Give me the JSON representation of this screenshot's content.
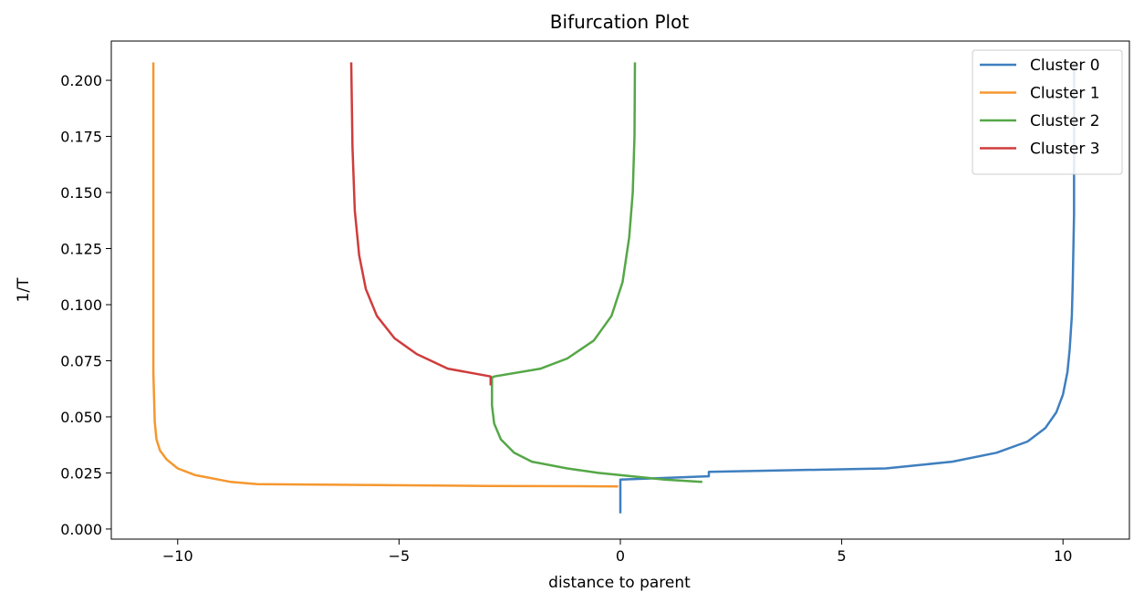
{
  "chart_data": {
    "type": "line",
    "title": "Bifurcation Plot",
    "xlabel": "distance to parent",
    "ylabel": "1/T",
    "xlim": [
      -11.5,
      11.5
    ],
    "ylim": [
      -0.0045,
      0.2175
    ],
    "x_ticks": [
      -10,
      -5,
      0,
      5,
      10
    ],
    "x_tick_labels": [
      "−10",
      "−5",
      "0",
      "5",
      "10"
    ],
    "y_ticks": [
      0.0,
      0.025,
      0.05,
      0.075,
      0.1,
      0.125,
      0.15,
      0.175,
      0.2
    ],
    "y_tick_labels": [
      "0.000",
      "0.025",
      "0.050",
      "0.075",
      "0.100",
      "0.125",
      "0.150",
      "0.175",
      "0.200"
    ],
    "grid": false,
    "legend": "top-right",
    "series": [
      {
        "name": "Cluster 0",
        "color": "#3f7fbf",
        "x": [
          0,
          0,
          2.0,
          2.0,
          6.0,
          7.5,
          8.5,
          9.2,
          9.6,
          9.85,
          10.0,
          10.1,
          10.15,
          10.2,
          10.22,
          10.25,
          10.25
        ],
        "y": [
          0.007,
          0.022,
          0.0235,
          0.0255,
          0.027,
          0.03,
          0.034,
          0.039,
          0.045,
          0.052,
          0.06,
          0.07,
          0.08,
          0.095,
          0.11,
          0.14,
          0.208
        ]
      },
      {
        "name": "Cluster 1",
        "color": "#f5972f",
        "x": [
          -0.05,
          -3.0,
          -8.2,
          -8.8,
          -9.6,
          -10.0,
          -10.25,
          -10.4,
          -10.48,
          -10.52,
          -10.55,
          -10.55
        ],
        "y": [
          0.019,
          0.0192,
          0.02,
          0.021,
          0.024,
          0.027,
          0.031,
          0.035,
          0.04,
          0.048,
          0.07,
          0.208
        ]
      },
      {
        "name": "Cluster 2",
        "color": "#55a747",
        "x": [
          1.85,
          1.0,
          -0.5,
          -1.2,
          -2.0,
          -2.4,
          -2.7,
          -2.85,
          -2.9,
          -2.9,
          -2.85,
          -1.8,
          -1.2,
          -0.6,
          -0.2,
          0.05,
          0.2,
          0.28,
          0.32,
          0.33
        ],
        "y": [
          0.021,
          0.022,
          0.025,
          0.027,
          0.03,
          0.034,
          0.04,
          0.047,
          0.055,
          0.0675,
          0.068,
          0.0715,
          0.076,
          0.084,
          0.095,
          0.11,
          0.13,
          0.15,
          0.175,
          0.208
        ]
      },
      {
        "name": "Cluster 3",
        "color": "#cf3c3c",
        "x": [
          -2.93,
          -2.93,
          -3.9,
          -4.6,
          -5.1,
          -5.5,
          -5.75,
          -5.9,
          -6.0,
          -6.05,
          -6.08
        ],
        "y": [
          0.064,
          0.068,
          0.0715,
          0.078,
          0.085,
          0.095,
          0.107,
          0.122,
          0.142,
          0.17,
          0.208
        ]
      }
    ]
  }
}
